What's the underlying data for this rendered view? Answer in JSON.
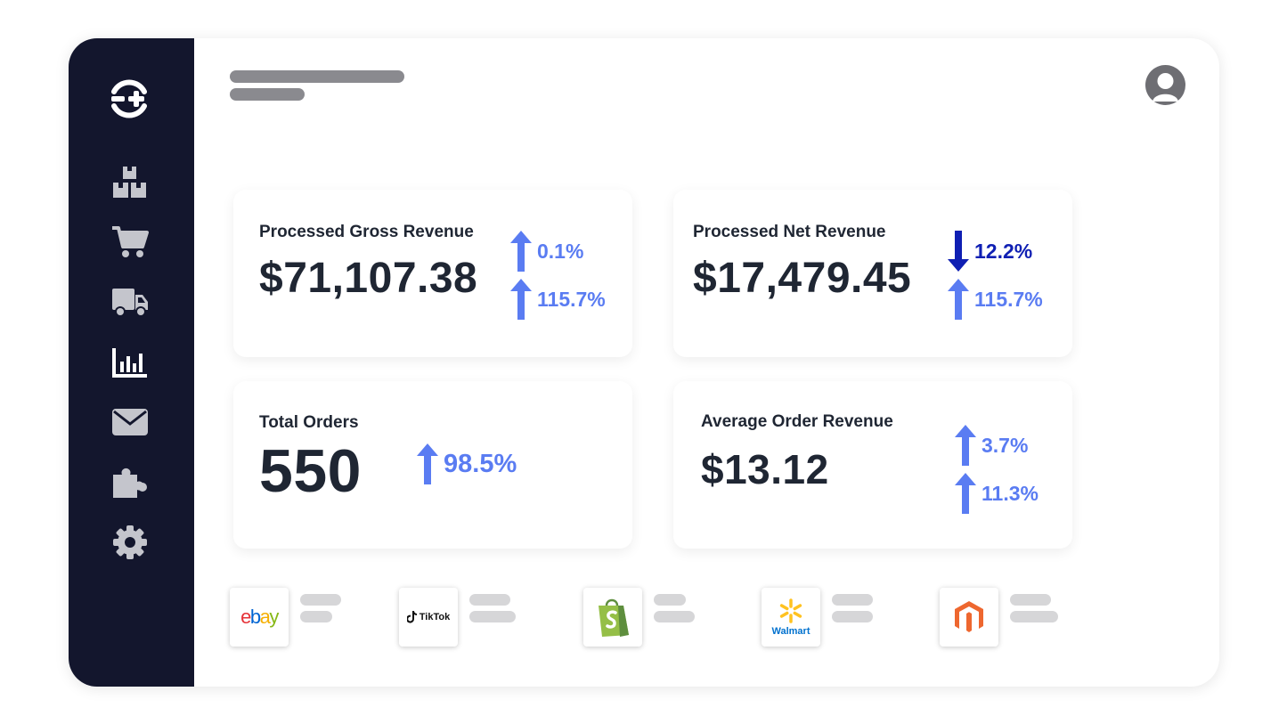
{
  "colors": {
    "sidebar_bg": "#13162d",
    "up_color": "#5a7cf2",
    "down_color": "#0f1fb3",
    "text_dark": "#1f2633",
    "skeleton_gray": "#8a8a8f",
    "skeleton_light": "#d6d6d8"
  },
  "sidebar": {
    "logo_icon": "brand-plus-circle-icon",
    "items": [
      {
        "icon": "boxes-icon"
      },
      {
        "icon": "shopping-cart-icon"
      },
      {
        "icon": "delivery-truck-icon"
      },
      {
        "icon": "bar-chart-icon"
      },
      {
        "icon": "envelope-icon"
      },
      {
        "icon": "puzzle-piece-icon"
      },
      {
        "icon": "gear-icon"
      }
    ]
  },
  "header": {
    "avatar_icon": "user-avatar-icon"
  },
  "metrics": [
    {
      "title": "Processed Gross Revenue",
      "value": "$71,107.38",
      "deltas": [
        {
          "direction": "up",
          "text": "0.1%"
        },
        {
          "direction": "up",
          "text": "115.7%"
        }
      ]
    },
    {
      "title": "Processed Net Revenue",
      "value": "$17,479.45",
      "deltas": [
        {
          "direction": "down",
          "text": "12.2%"
        },
        {
          "direction": "up",
          "text": "115.7%"
        }
      ]
    },
    {
      "title": "Total Orders",
      "value": "550",
      "deltas": [
        {
          "direction": "up",
          "text": "98.5%"
        }
      ]
    },
    {
      "title": "Average Order Revenue",
      "value": "$13.12",
      "deltas": [
        {
          "direction": "up",
          "text": "3.7%"
        },
        {
          "direction": "up",
          "text": "11.3%"
        }
      ]
    }
  ],
  "platforms": [
    {
      "name": "ebay",
      "icon": "ebay-logo"
    },
    {
      "name": "TikTok",
      "icon": "tiktok-logo"
    },
    {
      "name": "Shopify",
      "icon": "shopify-bag-logo"
    },
    {
      "name": "Walmart",
      "icon": "walmart-spark-logo"
    },
    {
      "name": "Magento",
      "icon": "magento-logo"
    }
  ]
}
